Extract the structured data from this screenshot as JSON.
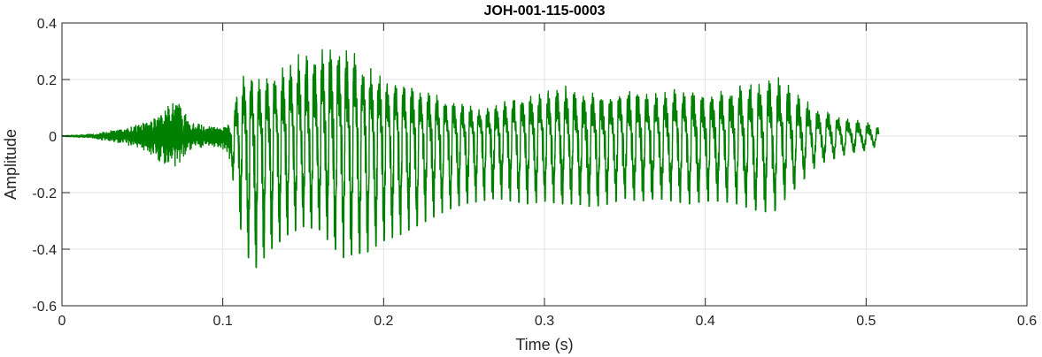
{
  "chart_data": {
    "type": "line",
    "title": "JOH-001-115-0003",
    "xlabel": "Time (s)",
    "ylabel": "Amplitude",
    "xlim": [
      0,
      0.6
    ],
    "ylim": [
      -0.6,
      0.4
    ],
    "xticks": [
      0,
      0.1,
      0.2,
      0.3,
      0.4,
      0.5,
      0.6
    ],
    "yticks": [
      -0.6,
      -0.4,
      -0.2,
      0,
      0.2,
      0.4
    ],
    "xtick_labels": [
      "0",
      "0.1",
      "0.2",
      "0.3",
      "0.4",
      "0.5",
      "0.6"
    ],
    "ytick_labels": [
      "-0.6",
      "-0.4",
      "-0.2",
      "0",
      "0.2",
      "0.4"
    ],
    "grid": true,
    "line_color": "#008000",
    "series": [
      {
        "x": [
          0,
          0.01,
          0.02,
          0.03,
          0.04,
          0.05,
          0.06,
          0.065,
          0.07,
          0.075,
          0.08,
          0.09,
          0.1,
          0.105,
          0.11,
          0.115,
          0.12,
          0.13,
          0.14,
          0.15,
          0.16,
          0.17,
          0.175,
          0.18,
          0.19,
          0.2,
          0.21,
          0.22,
          0.23,
          0.24,
          0.25,
          0.26,
          0.27,
          0.28,
          0.29,
          0.3,
          0.31,
          0.32,
          0.33,
          0.34,
          0.35,
          0.36,
          0.37,
          0.38,
          0.39,
          0.4,
          0.41,
          0.42,
          0.43,
          0.44,
          0.445,
          0.45,
          0.46,
          0.47,
          0.48,
          0.49,
          0.5,
          0.505,
          0.508
        ],
        "y_max": [
          0.002,
          0.004,
          0.008,
          0.02,
          0.03,
          0.05,
          0.08,
          0.1,
          0.15,
          0.1,
          0.06,
          0.04,
          0.03,
          0.06,
          0.2,
          0.22,
          0.21,
          0.2,
          0.26,
          0.3,
          0.31,
          0.33,
          0.32,
          0.33,
          0.26,
          0.22,
          0.19,
          0.18,
          0.15,
          0.13,
          0.11,
          0.1,
          0.12,
          0.14,
          0.15,
          0.16,
          0.18,
          0.17,
          0.16,
          0.15,
          0.17,
          0.16,
          0.16,
          0.17,
          0.17,
          0.15,
          0.17,
          0.18,
          0.19,
          0.2,
          0.21,
          0.19,
          0.14,
          0.09,
          0.08,
          0.06,
          0.05,
          0.04,
          0.03
        ],
        "y_min": [
          -0.002,
          -0.004,
          -0.008,
          -0.02,
          -0.03,
          -0.05,
          -0.09,
          -0.11,
          -0.14,
          -0.1,
          -0.05,
          -0.04,
          -0.05,
          -0.1,
          -0.3,
          -0.42,
          -0.47,
          -0.4,
          -0.35,
          -0.32,
          -0.33,
          -0.4,
          -0.43,
          -0.42,
          -0.41,
          -0.37,
          -0.35,
          -0.32,
          -0.29,
          -0.26,
          -0.24,
          -0.23,
          -0.22,
          -0.23,
          -0.24,
          -0.23,
          -0.24,
          -0.24,
          -0.25,
          -0.24,
          -0.22,
          -0.23,
          -0.22,
          -0.23,
          -0.24,
          -0.23,
          -0.23,
          -0.24,
          -0.26,
          -0.27,
          -0.26,
          -0.22,
          -0.16,
          -0.1,
          -0.08,
          -0.06,
          -0.05,
          -0.04,
          -0.02
        ],
        "pitch_start_time": 0.105
      }
    ]
  }
}
